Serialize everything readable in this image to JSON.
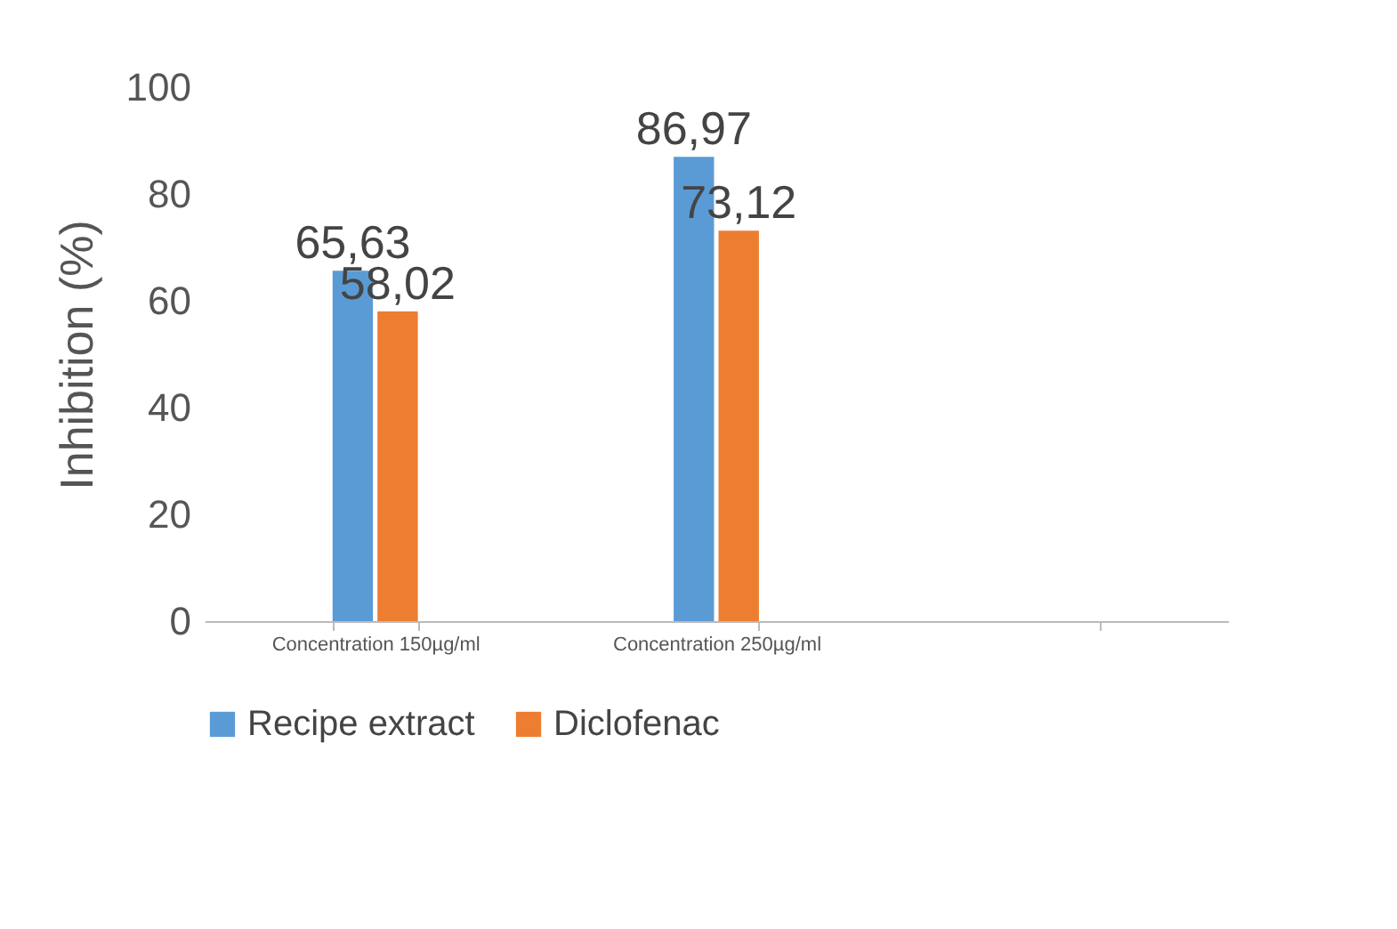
{
  "chart_data": {
    "type": "bar",
    "ylabel": "Inhibition (%)",
    "categories": [
      "Concentration 150µg/ml",
      "Concentration 250µg/ml",
      null
    ],
    "series": [
      {
        "name": "Recipe extract",
        "color": "#5b9bd5",
        "values": [
          65.63,
          86.97,
          null
        ],
        "value_labels": [
          "65,63",
          "86,97",
          null
        ]
      },
      {
        "name": "Diclofenac",
        "color": "#ed7d31",
        "values": [
          58.02,
          73.12,
          null
        ],
        "value_labels": [
          "58,02",
          "73,12",
          null
        ]
      }
    ],
    "ylim": [
      0,
      100
    ],
    "yticks": [
      0,
      20,
      40,
      60,
      80,
      100
    ],
    "grid": false,
    "legend": "bottom"
  }
}
